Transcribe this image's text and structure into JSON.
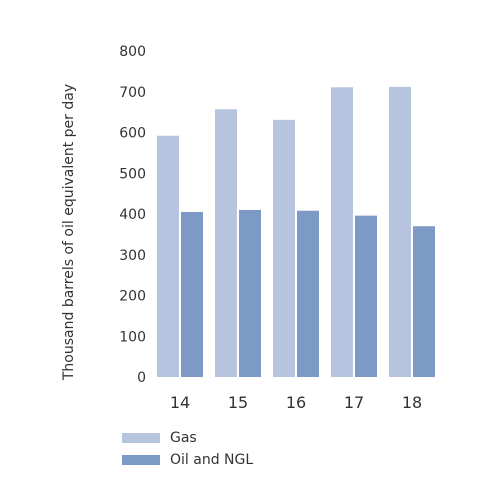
{
  "chart_data": {
    "type": "bar",
    "categories": [
      "14",
      "15",
      "16",
      "17",
      "18"
    ],
    "series": [
      {
        "name": "Gas",
        "color": "#b6c4e0",
        "values": [
          592,
          657,
          631,
          711,
          712
        ]
      },
      {
        "name": "Oil and NGL",
        "color": "#7d99c6",
        "values": [
          405,
          410,
          408,
          396,
          370
        ]
      }
    ],
    "ylabel": "Thousand barrels of oil equivalent per day",
    "ylim": [
      0,
      800
    ],
    "yticks": [
      0,
      100,
      200,
      300,
      400,
      500,
      600,
      700,
      800
    ],
    "grid": false,
    "legend_position": "bottom-left"
  }
}
